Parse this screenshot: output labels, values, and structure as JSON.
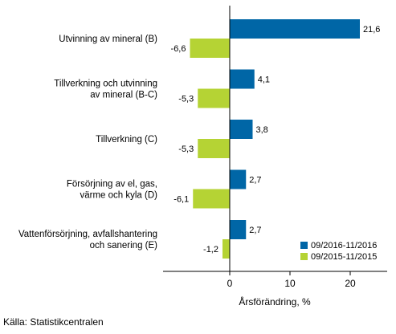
{
  "chart_data": {
    "type": "bar",
    "orientation": "horizontal",
    "categories": [
      [
        "Utvinning av mineral (B)"
      ],
      [
        "Tillverkning och utvinning",
        "av mineral (B-C)"
      ],
      [
        "Tillverkning (C)"
      ],
      [
        "Försörjning av el, gas,",
        "värme och kyla (D)"
      ],
      [
        "Vattenförsörjning, avfallshantering",
        "och sanering (E)"
      ]
    ],
    "series": [
      {
        "name": "09/2016-11/2016",
        "color": "#0066a6",
        "values": [
          21.6,
          4.1,
          3.8,
          2.7,
          2.7
        ],
        "labels": [
          "21,6",
          "4,1",
          "3,8",
          "2,7",
          "2,7"
        ]
      },
      {
        "name": "09/2015-11/2015",
        "color": "#b5d334",
        "values": [
          -6.6,
          -5.3,
          -5.3,
          -6.1,
          -1.2
        ],
        "labels": [
          "-6,6",
          "-5,3",
          "-5,3",
          "-6,1",
          "-1,2"
        ]
      }
    ],
    "xlabel": "Årsförändring, %",
    "xlim": [
      -11,
      26
    ],
    "xticks": [
      0,
      10,
      20
    ],
    "xtick_labels": [
      "0",
      "10",
      "20"
    ],
    "grid": false,
    "legend_position": "bottom-right"
  },
  "source": "Källa: Statistikcentralen"
}
